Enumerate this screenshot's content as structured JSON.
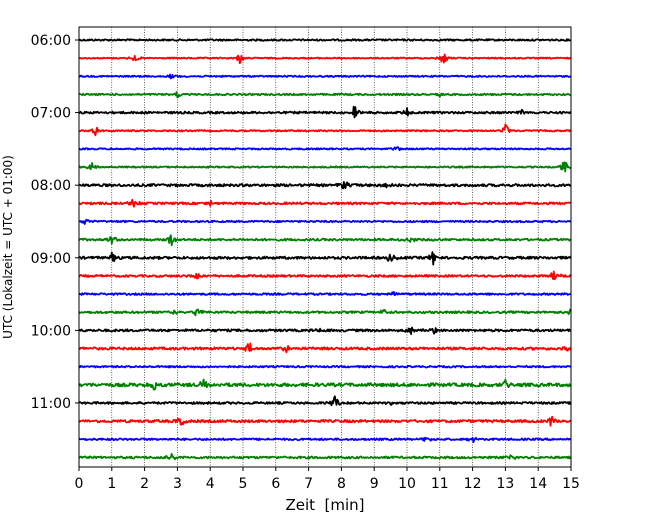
{
  "chart_data": {
    "type": "line",
    "title": "",
    "xlabel": "Zeit  [min]",
    "ylabel": "UTC (Lokalzeit = UTC + 01:00)",
    "xlim": [
      0,
      15
    ],
    "x_ticks": [
      0,
      1,
      2,
      3,
      4,
      5,
      6,
      7,
      8,
      9,
      10,
      11,
      12,
      13,
      14,
      15
    ],
    "x_tick_labels": [
      "0",
      "1",
      "2",
      "3",
      "4",
      "5",
      "6",
      "7",
      "8",
      "9",
      "10",
      "11",
      "12",
      "13",
      "14",
      "15"
    ],
    "y_tick_labels": [
      "06:00",
      "07:00",
      "08:00",
      "09:00",
      "10:00",
      "11:00"
    ],
    "y_tick_row_index": [
      0,
      4,
      8,
      12,
      16,
      20
    ],
    "grid": "vertical dotted lines at each minute",
    "row_colors": [
      "#000000",
      "#ff0000",
      "#0000ff",
      "#008000"
    ],
    "rows": [
      {
        "start": "06:00",
        "color": "#000000",
        "noise": 0.8,
        "spikes": []
      },
      {
        "start": "06:15",
        "color": "#ff0000",
        "noise": 0.6,
        "spikes": [
          {
            "x": 1.7,
            "amp": 4
          },
          {
            "x": 4.9,
            "amp": 6
          },
          {
            "x": 11.1,
            "amp": 9
          }
        ]
      },
      {
        "start": "06:30",
        "color": "#0000ff",
        "noise": 0.7,
        "spikes": [
          {
            "x": 2.8,
            "amp": 3
          }
        ]
      },
      {
        "start": "06:45",
        "color": "#008000",
        "noise": 0.8,
        "spikes": [
          {
            "x": 3.0,
            "amp": 4
          },
          {
            "x": 11.0,
            "amp": 3
          }
        ]
      },
      {
        "start": "07:00",
        "color": "#000000",
        "noise": 1.0,
        "spikes": [
          {
            "x": 8.4,
            "amp": 9
          },
          {
            "x": 10.0,
            "amp": 4
          },
          {
            "x": 13.5,
            "amp": 3
          }
        ]
      },
      {
        "start": "07:15",
        "color": "#ff0000",
        "noise": 0.7,
        "spikes": [
          {
            "x": 0.5,
            "amp": 5
          },
          {
            "x": 13.0,
            "amp": 8
          }
        ]
      },
      {
        "start": "07:30",
        "color": "#0000ff",
        "noise": 0.7,
        "spikes": [
          {
            "x": 9.7,
            "amp": 3
          }
        ]
      },
      {
        "start": "07:45",
        "color": "#008000",
        "noise": 0.7,
        "spikes": [
          {
            "x": 0.4,
            "amp": 5
          },
          {
            "x": 14.8,
            "amp": 9
          }
        ]
      },
      {
        "start": "08:00",
        "color": "#000000",
        "noise": 1.2,
        "spikes": [
          {
            "x": 8.1,
            "amp": 6
          },
          {
            "x": 9.4,
            "amp": 4
          }
        ]
      },
      {
        "start": "08:15",
        "color": "#ff0000",
        "noise": 1.0,
        "spikes": [
          {
            "x": 1.7,
            "amp": 8
          },
          {
            "x": 4.0,
            "amp": 4
          }
        ]
      },
      {
        "start": "08:30",
        "color": "#0000ff",
        "noise": 0.8,
        "spikes": [
          {
            "x": 0.2,
            "amp": 5
          }
        ]
      },
      {
        "start": "08:45",
        "color": "#008000",
        "noise": 1.0,
        "spikes": [
          {
            "x": 1.0,
            "amp": 5
          },
          {
            "x": 2.8,
            "amp": 7
          },
          {
            "x": 10.1,
            "amp": 5
          }
        ]
      },
      {
        "start": "09:00",
        "color": "#000000",
        "noise": 1.2,
        "spikes": [
          {
            "x": 1.0,
            "amp": 6
          },
          {
            "x": 9.5,
            "amp": 5
          },
          {
            "x": 10.8,
            "amp": 9
          }
        ]
      },
      {
        "start": "09:15",
        "color": "#ff0000",
        "noise": 1.0,
        "spikes": [
          {
            "x": 3.6,
            "amp": 5
          },
          {
            "x": 14.5,
            "amp": 7
          }
        ]
      },
      {
        "start": "09:30",
        "color": "#0000ff",
        "noise": 0.9,
        "spikes": [
          {
            "x": 9.6,
            "amp": 3
          }
        ]
      },
      {
        "start": "09:45",
        "color": "#008000",
        "noise": 1.0,
        "spikes": [
          {
            "x": 2.9,
            "amp": 6
          },
          {
            "x": 3.6,
            "amp": 6
          },
          {
            "x": 9.3,
            "amp": 3
          },
          {
            "x": 15.0,
            "amp": 8
          }
        ]
      },
      {
        "start": "10:00",
        "color": "#000000",
        "noise": 1.1,
        "spikes": [
          {
            "x": 7.3,
            "amp": 3
          },
          {
            "x": 10.1,
            "amp": 4
          },
          {
            "x": 10.8,
            "amp": 4
          }
        ]
      },
      {
        "start": "10:15",
        "color": "#ff0000",
        "noise": 1.2,
        "spikes": [
          {
            "x": 5.2,
            "amp": 8
          },
          {
            "x": 6.3,
            "amp": 4
          },
          {
            "x": 15.0,
            "amp": 8
          }
        ]
      },
      {
        "start": "10:30",
        "color": "#0000ff",
        "noise": 0.8,
        "spikes": []
      },
      {
        "start": "10:45",
        "color": "#008000",
        "noise": 1.6,
        "spikes": [
          {
            "x": 2.3,
            "amp": 7
          },
          {
            "x": 3.8,
            "amp": 5
          },
          {
            "x": 13.0,
            "amp": 4
          }
        ]
      },
      {
        "start": "11:00",
        "color": "#000000",
        "noise": 1.0,
        "spikes": [
          {
            "x": 7.8,
            "amp": 8
          },
          {
            "x": 9.5,
            "amp": 3
          }
        ]
      },
      {
        "start": "11:15",
        "color": "#ff0000",
        "noise": 1.2,
        "spikes": [
          {
            "x": 3.1,
            "amp": 5
          },
          {
            "x": 14.4,
            "amp": 8
          }
        ]
      },
      {
        "start": "11:30",
        "color": "#0000ff",
        "noise": 0.9,
        "spikes": [
          {
            "x": 10.6,
            "amp": 3
          },
          {
            "x": 12.0,
            "amp": 4
          }
        ]
      },
      {
        "start": "11:45",
        "color": "#008000",
        "noise": 1.0,
        "spikes": [
          {
            "x": 2.8,
            "amp": 5
          },
          {
            "x": 13.2,
            "amp": 3
          }
        ]
      }
    ]
  }
}
